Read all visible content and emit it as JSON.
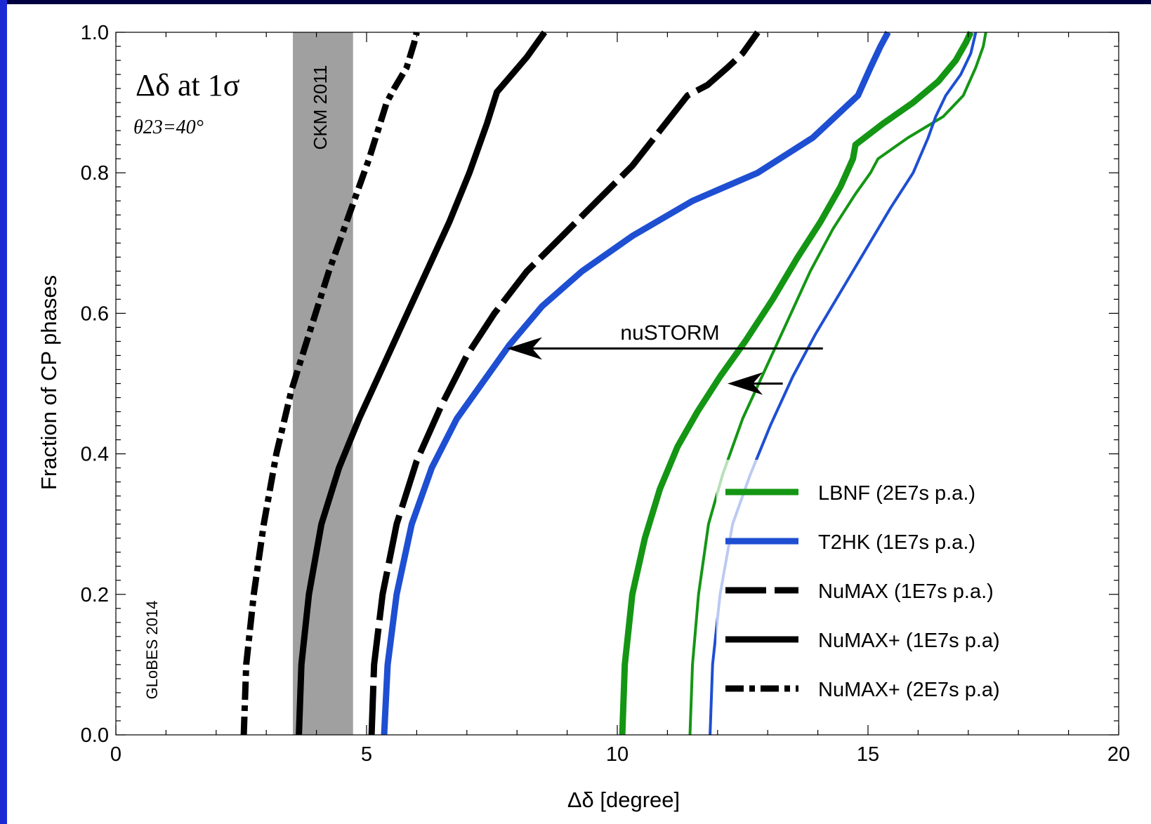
{
  "colors": {
    "background": "#000040",
    "panel": "#ffffff",
    "lbnf": "#149614",
    "t2hk": "#1e4fd2",
    "numax": "#000000",
    "band": "#a0a0a0"
  },
  "chart_data": {
    "type": "line",
    "xlabel": "Δδ [degree]",
    "ylabel": "Fraction of CP phases",
    "xlim": [
      0,
      20
    ],
    "ylim": [
      0,
      1
    ],
    "xticks": [
      "0",
      "5",
      "10",
      "15",
      "20"
    ],
    "yticks": [
      "0.0",
      "0.2",
      "0.4",
      "0.6",
      "0.8",
      "1.0"
    ],
    "grid": false,
    "legend_position": "bottom-right",
    "annotations": {
      "title_main": "Δδ at 1σ",
      "title_sub": "θ23=40°",
      "band_label": "CKM 2011",
      "credit": "GLoBES 2014",
      "arrow_label": "nuSTORM"
    },
    "band": {
      "x": [
        3.53,
        4.73
      ]
    },
    "series": [
      {
        "name": "LBNF (2E7s p.a.)",
        "style": "solid-thick",
        "color": "#149614",
        "x": [
          10.1,
          10.15,
          10.3,
          10.55,
          10.85,
          11.2,
          11.6,
          12.05,
          12.55,
          13.1,
          13.6,
          14.05,
          14.45,
          14.7,
          14.75,
          15.3,
          15.9,
          16.4,
          16.75,
          16.95,
          17.05
        ],
        "y": [
          0.0,
          0.1,
          0.2,
          0.28,
          0.35,
          0.41,
          0.46,
          0.51,
          0.56,
          0.62,
          0.68,
          0.73,
          0.78,
          0.82,
          0.84,
          0.87,
          0.9,
          0.93,
          0.96,
          0.985,
          1.0
        ]
      },
      {
        "name": "LBNF (2E7s p.a.) nuSTORM",
        "style": "solid-thin",
        "color": "#149614",
        "x": [
          11.45,
          11.5,
          11.62,
          11.82,
          12.1,
          12.5,
          12.95,
          13.4,
          13.85,
          14.3,
          14.75,
          15.05,
          15.2,
          15.8,
          16.5,
          16.9,
          17.15,
          17.3,
          17.35
        ],
        "y": [
          0.0,
          0.1,
          0.2,
          0.3,
          0.37,
          0.45,
          0.52,
          0.59,
          0.66,
          0.72,
          0.77,
          0.8,
          0.82,
          0.85,
          0.88,
          0.91,
          0.95,
          0.98,
          1.0
        ]
      },
      {
        "name": "T2HK (1E7s p.a.)",
        "style": "solid-thick",
        "color": "#1e4fd2",
        "x": [
          5.35,
          5.42,
          5.6,
          5.9,
          6.3,
          6.8,
          7.3,
          7.85,
          8.5,
          9.3,
          10.3,
          11.5,
          12.8,
          13.9,
          14.8,
          15.05,
          15.25,
          15.4
        ],
        "y": [
          0.0,
          0.1,
          0.2,
          0.3,
          0.38,
          0.45,
          0.5,
          0.555,
          0.61,
          0.66,
          0.71,
          0.76,
          0.8,
          0.85,
          0.91,
          0.95,
          0.98,
          1.0
        ]
      },
      {
        "name": "T2HK (1E7s p.a.) nuSTORM",
        "style": "solid-thin",
        "color": "#1e4fd2",
        "x": [
          11.85,
          11.9,
          12.05,
          12.3,
          12.65,
          13.05,
          13.5,
          13.95,
          14.45,
          14.95,
          15.45,
          15.9,
          16.2,
          16.35,
          16.55,
          16.85,
          17.05,
          17.15
        ],
        "y": [
          0.0,
          0.1,
          0.2,
          0.3,
          0.37,
          0.44,
          0.51,
          0.57,
          0.63,
          0.69,
          0.75,
          0.8,
          0.85,
          0.88,
          0.91,
          0.94,
          0.97,
          1.0
        ]
      },
      {
        "name": "NuMAX (1E7s p.a.)",
        "style": "long-dash",
        "color": "#000000",
        "x": [
          5.1,
          5.15,
          5.32,
          5.6,
          6.0,
          6.5,
          7.0,
          7.55,
          8.2,
          8.9,
          9.6,
          10.3,
          10.85,
          11.4,
          11.8,
          12.2,
          12.5,
          12.7,
          12.8
        ],
        "y": [
          0.0,
          0.1,
          0.2,
          0.3,
          0.39,
          0.47,
          0.54,
          0.6,
          0.66,
          0.71,
          0.76,
          0.81,
          0.86,
          0.91,
          0.925,
          0.95,
          0.97,
          0.99,
          1.0
        ]
      },
      {
        "name": "NuMAX+ (1E7s p.a)",
        "style": "solid-thick",
        "color": "#000000",
        "x": [
          3.65,
          3.7,
          3.85,
          4.1,
          4.45,
          4.85,
          5.3,
          5.75,
          6.2,
          6.65,
          7.05,
          7.4,
          7.6,
          7.9,
          8.2,
          8.4,
          8.5,
          8.55
        ],
        "y": [
          0.0,
          0.1,
          0.2,
          0.3,
          0.38,
          0.45,
          0.52,
          0.59,
          0.66,
          0.73,
          0.8,
          0.87,
          0.915,
          0.94,
          0.965,
          0.985,
          0.995,
          1.0
        ]
      },
      {
        "name": "NuMAX+ (2E7s p.a)",
        "style": "dash-dot",
        "color": "#000000",
        "x": [
          2.55,
          2.6,
          2.75,
          2.95,
          3.2,
          3.5,
          3.85,
          4.25,
          4.65,
          5.05,
          5.4,
          5.55,
          5.8,
          5.95,
          6.0
        ],
        "y": [
          0.0,
          0.1,
          0.2,
          0.3,
          0.4,
          0.49,
          0.57,
          0.66,
          0.74,
          0.82,
          0.9,
          0.92,
          0.95,
          0.985,
          1.0
        ]
      }
    ],
    "arrows": [
      {
        "from_x": 14.1,
        "to_x": 7.8,
        "y": 0.55
      },
      {
        "from_x": 13.3,
        "to_x": 12.2,
        "y": 0.5
      }
    ]
  }
}
